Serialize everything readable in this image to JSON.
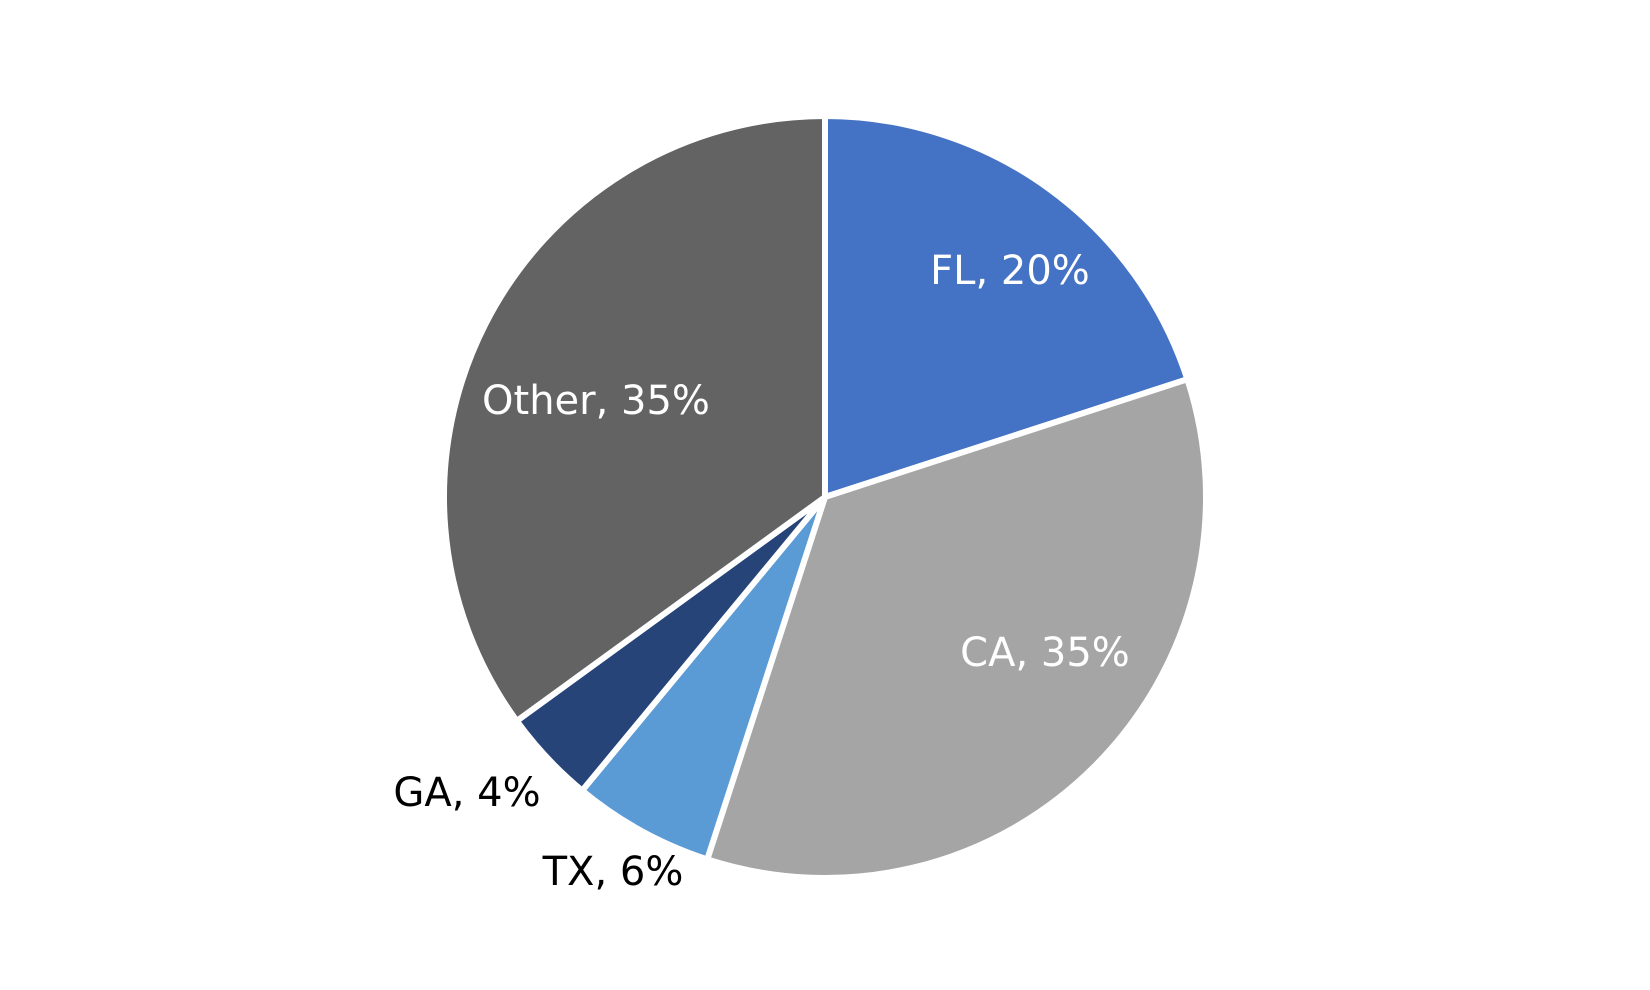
{
  "chart_data": {
    "type": "pie",
    "title": "",
    "start_angle_deg": 0,
    "direction": "clockwise",
    "slices": [
      {
        "label": "FL",
        "value": 20,
        "display": "FL, 20%",
        "color": "#4472C4",
        "label_color": "#FFFFFF",
        "label_position": "inside"
      },
      {
        "label": "CA",
        "value": 35,
        "display": "CA, 35%",
        "color": "#A5A5A5",
        "label_color": "#FFFFFF",
        "label_position": "inside"
      },
      {
        "label": "TX",
        "value": 6,
        "display": "TX, 6%",
        "color": "#5B9BD5",
        "label_color": "#000000",
        "label_position": "outside"
      },
      {
        "label": "GA",
        "value": 4,
        "display": "GA, 4%",
        "color": "#264478",
        "label_color": "#000000",
        "label_position": "outside"
      },
      {
        "label": "Other",
        "value": 35,
        "display": "Other, 35%",
        "color": "#636363",
        "label_color": "#FFFFFF",
        "label_position": "inside"
      }
    ],
    "separator_color": "#FFFFFF",
    "legend": "none"
  }
}
